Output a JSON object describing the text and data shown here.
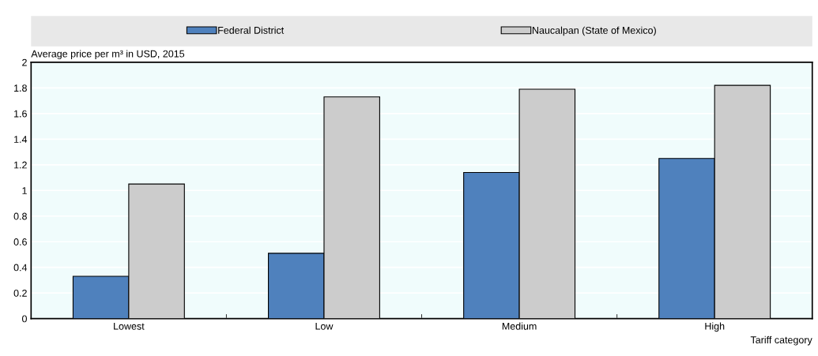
{
  "chart_data": {
    "type": "bar",
    "ylabel": "Average price per m³ in USD, 2015",
    "xlabel": "Tariff category",
    "categories": [
      "Lowest",
      "Low",
      "Medium",
      "High"
    ],
    "series": [
      {
        "name": "Federal District",
        "color": "#4f81bd",
        "values": [
          0.33,
          0.51,
          1.14,
          1.25
        ]
      },
      {
        "name": "Naucalpan (State of Mexico)",
        "color": "#cccccc",
        "values": [
          1.05,
          1.73,
          1.79,
          1.82
        ]
      }
    ],
    "ylim": [
      0,
      2
    ],
    "yticks": [
      0,
      0.2,
      0.4,
      0.6,
      0.8,
      1,
      1.2,
      1.4,
      1.6,
      1.8,
      2
    ],
    "grid": "y",
    "legend": "top"
  }
}
